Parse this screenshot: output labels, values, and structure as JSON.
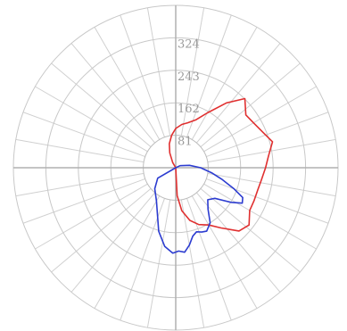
{
  "chart_data": {
    "type": "polar-line",
    "title": "",
    "radial_axis": {
      "min": 0,
      "max": 405,
      "tick_values": [
        81,
        162,
        243,
        324
      ],
      "tick_labels": [
        "81",
        "162",
        "243",
        "324"
      ],
      "ring_count": 5
    },
    "angular_axis": {
      "spoke_step_deg": 10,
      "zero_direction": "down",
      "direction": "counterclockwise"
    },
    "grid": true,
    "legend": "none",
    "series": [
      {
        "color": "#e03030",
        "points": [
          {
            "angle": 0,
            "r": 0
          },
          {
            "angle": 3,
            "r": 70
          },
          {
            "angle": 8,
            "r": 108
          },
          {
            "angle": 15,
            "r": 136
          },
          {
            "angle": 22,
            "r": 153
          },
          {
            "angle": 30,
            "r": 165
          },
          {
            "angle": 37,
            "r": 188
          },
          {
            "angle": 45,
            "r": 223
          },
          {
            "angle": 52,
            "r": 232
          },
          {
            "angle": 60,
            "r": 213
          },
          {
            "angle": 67,
            "r": 212
          },
          {
            "angle": 75,
            "r": 212
          },
          {
            "angle": 82,
            "r": 216
          },
          {
            "angle": 90,
            "r": 224
          },
          {
            "angle": 97,
            "r": 233
          },
          {
            "angle": 105,
            "r": 250
          },
          {
            "angle": 112,
            "r": 235
          },
          {
            "angle": 120,
            "r": 224
          },
          {
            "angle": 127,
            "r": 219
          },
          {
            "angle": 135,
            "r": 244
          },
          {
            "angle": 142,
            "r": 205
          },
          {
            "angle": 150,
            "r": 158
          },
          {
            "angle": 157,
            "r": 130
          },
          {
            "angle": 165,
            "r": 116
          },
          {
            "angle": 172,
            "r": 109
          },
          {
            "angle": 180,
            "r": 98
          },
          {
            "angle": 187,
            "r": 82
          },
          {
            "angle": 195,
            "r": 62
          },
          {
            "angle": 202,
            "r": 40
          },
          {
            "angle": 210,
            "r": 15
          },
          {
            "angle": 220,
            "r": 0
          }
        ]
      },
      {
        "color": "#2c3cd0",
        "points": [
          {
            "angle": 0,
            "r": 0
          },
          {
            "angle": 300,
            "r": 52
          },
          {
            "angle": 315,
            "r": 74
          },
          {
            "angle": 330,
            "r": 96
          },
          {
            "angle": 345,
            "r": 164
          },
          {
            "angle": 352,
            "r": 198
          },
          {
            "angle": 358,
            "r": 213
          },
          {
            "angle": 2,
            "r": 208
          },
          {
            "angle": 6,
            "r": 212
          },
          {
            "angle": 10,
            "r": 196
          },
          {
            "angle": 14,
            "r": 176
          },
          {
            "angle": 18,
            "r": 168
          },
          {
            "angle": 22,
            "r": 173
          },
          {
            "angle": 26,
            "r": 176
          },
          {
            "angle": 32,
            "r": 162
          },
          {
            "angle": 38,
            "r": 131
          },
          {
            "angle": 45,
            "r": 113
          },
          {
            "angle": 52,
            "r": 124
          },
          {
            "angle": 58,
            "r": 163
          },
          {
            "angle": 62,
            "r": 188
          },
          {
            "angle": 66,
            "r": 183
          },
          {
            "angle": 70,
            "r": 155
          },
          {
            "angle": 76,
            "r": 118
          },
          {
            "angle": 82,
            "r": 90
          },
          {
            "angle": 90,
            "r": 62
          },
          {
            "angle": 100,
            "r": 35
          },
          {
            "angle": 115,
            "r": 12
          },
          {
            "angle": 130,
            "r": 0
          }
        ]
      }
    ]
  }
}
